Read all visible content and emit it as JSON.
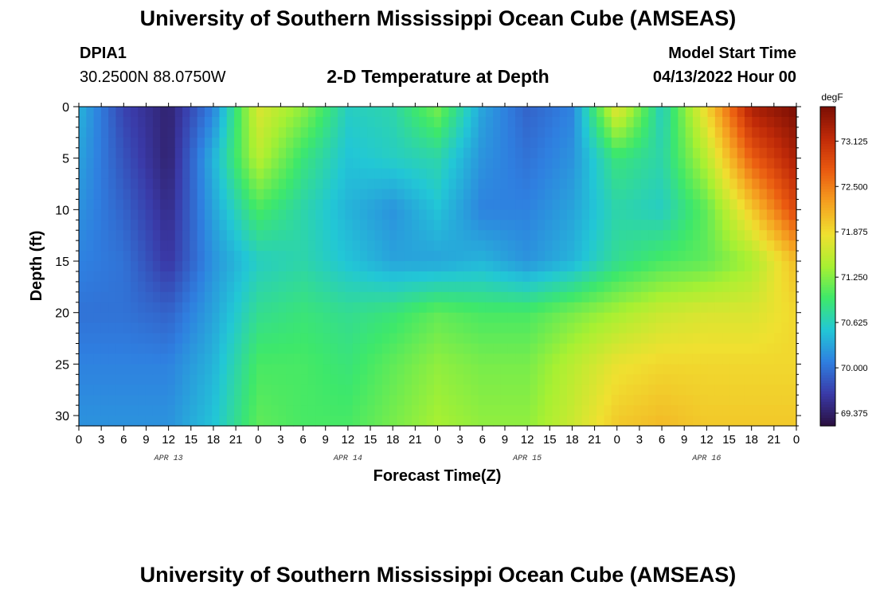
{
  "header": {
    "title": "University of Southern Mississippi Ocean Cube (AMSEAS)",
    "station": "DPIA1",
    "coords": "30.2500N  88.0750W",
    "subtitle": "2-D Temperature at Depth",
    "model_start_label": "Model Start Time",
    "model_start_value": "04/13/2022 Hour 00"
  },
  "footer": {
    "title": "University of Southern Mississippi Ocean Cube (AMSEAS)"
  },
  "colors": {
    "colormap": [
      "#2a0f3f",
      "#3a3aa8",
      "#2f7fe0",
      "#22c7d6",
      "#3ee86a",
      "#a8f032",
      "#f0e030",
      "#f5a020",
      "#ea5a10",
      "#c02a08",
      "#7a0e04"
    ]
  },
  "chart_data": {
    "type": "heatmap",
    "xlabel": "Forecast Time(Z)",
    "ylabel": "Depth (ft)",
    "colorbar_label": "degF",
    "x_tick_labels": [
      "0",
      "3",
      "6",
      "9",
      "12",
      "15",
      "18",
      "21",
      "0",
      "3",
      "6",
      "9",
      "12",
      "15",
      "18",
      "21",
      "0",
      "3",
      "6",
      "9",
      "12",
      "15",
      "18",
      "21",
      "0",
      "3",
      "6",
      "9",
      "12",
      "15",
      "18",
      "21",
      "0"
    ],
    "date_labels": [
      "APR 13",
      "APR 14",
      "APR 15",
      "APR 16"
    ],
    "y_ticks": [
      0,
      5,
      10,
      15,
      20,
      25,
      30
    ],
    "ylim": [
      0,
      31
    ],
    "colorbar_ticks": [
      "73.125",
      "72.500",
      "71.875",
      "71.250",
      "70.625",
      "70.000",
      "69.375"
    ],
    "value_range": [
      69.2,
      73.6
    ],
    "x_hours": [
      0,
      6,
      12,
      18,
      24,
      30,
      36,
      42,
      48,
      54,
      60,
      66,
      72,
      78,
      84,
      90,
      96
    ],
    "depths": [
      0,
      5,
      10,
      15,
      20,
      25,
      31
    ],
    "values": [
      [
        70.4,
        69.7,
        69.4,
        70.1,
        71.7,
        71.3,
        70.6,
        70.7,
        71.2,
        70.3,
        69.9,
        70.1,
        71.8,
        70.6,
        71.9,
        73.3,
        73.6
      ],
      [
        70.3,
        69.8,
        69.4,
        70.4,
        71.5,
        70.9,
        70.5,
        70.6,
        70.7,
        70.2,
        70.0,
        70.2,
        70.9,
        70.7,
        71.5,
        72.7,
        73.3
      ],
      [
        70.2,
        69.9,
        69.5,
        70.3,
        71.0,
        70.7,
        70.4,
        70.2,
        70.5,
        70.1,
        70.1,
        70.3,
        70.7,
        70.6,
        71.1,
        72.0,
        72.9
      ],
      [
        70.1,
        70.0,
        69.6,
        70.2,
        70.6,
        70.7,
        70.5,
        70.3,
        70.3,
        70.4,
        70.2,
        70.4,
        70.8,
        71.0,
        71.1,
        71.4,
        72.1
      ],
      [
        70.0,
        70.0,
        69.9,
        70.3,
        70.8,
        70.9,
        70.8,
        70.9,
        71.1,
        71.0,
        71.0,
        71.2,
        71.4,
        71.6,
        71.7,
        71.7,
        71.9
      ],
      [
        70.1,
        70.1,
        70.1,
        70.4,
        71.0,
        71.0,
        70.9,
        71.1,
        71.3,
        71.2,
        71.2,
        71.5,
        71.8,
        71.9,
        71.9,
        71.9,
        71.9
      ],
      [
        70.2,
        70.2,
        70.2,
        70.5,
        71.1,
        71.0,
        71.0,
        71.2,
        71.4,
        71.3,
        71.3,
        71.6,
        72.0,
        72.1,
        72.0,
        72.0,
        72.0
      ]
    ]
  }
}
